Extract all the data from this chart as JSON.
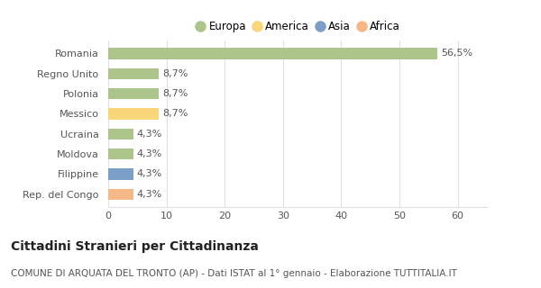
{
  "categories": [
    "Rep. del Congo",
    "Filippine",
    "Moldova",
    "Ucraina",
    "Messico",
    "Polonia",
    "Regno Unito",
    "Romania"
  ],
  "values": [
    4.3,
    4.3,
    4.3,
    4.3,
    8.7,
    8.7,
    8.7,
    56.5
  ],
  "colors": [
    "#f5b886",
    "#7b9fc7",
    "#adc48a",
    "#adc48a",
    "#f9d67a",
    "#adc48a",
    "#adc48a",
    "#adc48a"
  ],
  "labels": [
    "4,3%",
    "4,3%",
    "4,3%",
    "4,3%",
    "8,7%",
    "8,7%",
    "8,7%",
    "56,5%"
  ],
  "legend_labels": [
    "Europa",
    "America",
    "Asia",
    "Africa"
  ],
  "legend_colors": [
    "#adc48a",
    "#f9d67a",
    "#7b9fc7",
    "#f5b886"
  ],
  "xlim": [
    0,
    65
  ],
  "xticks": [
    0,
    10,
    20,
    30,
    40,
    50,
    60
  ],
  "title": "Cittadini Stranieri per Cittadinanza",
  "subtitle": "COMUNE DI ARQUATA DEL TRONTO (AP) - Dati ISTAT al 1° gennaio - Elaborazione TUTTITALIA.IT",
  "background_color": "#ffffff",
  "grid_color": "#e0e0e0",
  "bar_height": 0.55,
  "title_fontsize": 10,
  "subtitle_fontsize": 7.5,
  "label_fontsize": 8,
  "tick_fontsize": 8,
  "legend_fontsize": 8.5
}
